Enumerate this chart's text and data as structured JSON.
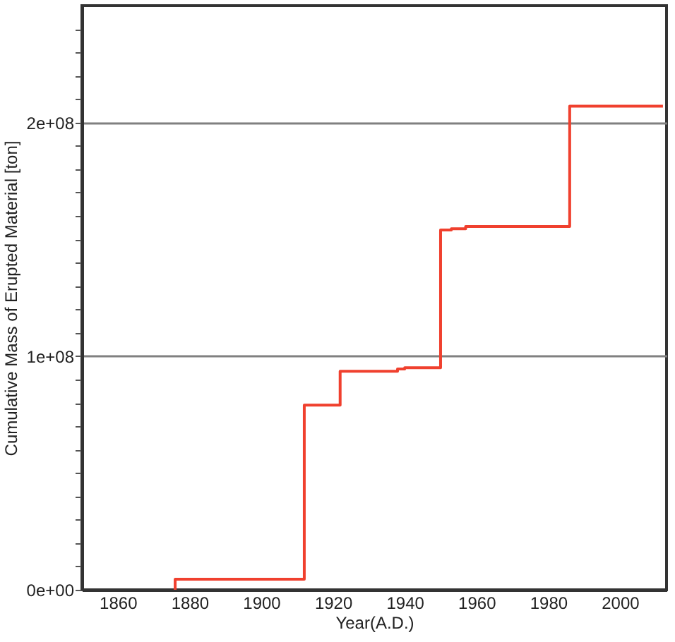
{
  "chart_data": {
    "type": "step",
    "xlabel": "Year(A.D.)",
    "ylabel": "Cumulative Mass of Erupted Material [ton]",
    "x": [
      1876,
      1876,
      1912,
      1922,
      1938,
      1940,
      1950,
      1953,
      1957,
      1986,
      2012
    ],
    "series": [
      {
        "color": "#f0402e",
        "values": [
          0,
          4500000,
          79000000,
          93500000,
          94500000,
          95000000,
          154000000,
          154500000,
          155500000,
          207000000,
          207000000
        ]
      }
    ],
    "xlim": [
      1850,
      2013
    ],
    "xticks": [
      1860,
      1880,
      1900,
      1920,
      1940,
      1960,
      1980,
      2000
    ],
    "ylim": [
      0,
      250000000
    ],
    "yticks": [
      {
        "value": 0,
        "label": "0e+00"
      },
      {
        "value": 10000000,
        "label": null
      },
      {
        "value": 20000000,
        "label": null
      },
      {
        "value": 30000000,
        "label": null
      },
      {
        "value": 40000000,
        "label": null
      },
      {
        "value": 50000000,
        "label": null
      },
      {
        "value": 60000000,
        "label": null
      },
      {
        "value": 70000000,
        "label": null
      },
      {
        "value": 80000000,
        "label": null
      },
      {
        "value": 90000000,
        "label": null
      },
      {
        "value": 100000000,
        "label": "1e+08"
      },
      {
        "value": 110000000,
        "label": null
      },
      {
        "value": 120000000,
        "label": null
      },
      {
        "value": 130000000,
        "label": null
      },
      {
        "value": 140000000,
        "label": null
      },
      {
        "value": 150000000,
        "label": null
      },
      {
        "value": 160000000,
        "label": null
      },
      {
        "value": 170000000,
        "label": null
      },
      {
        "value": 180000000,
        "label": null
      },
      {
        "value": 190000000,
        "label": null
      },
      {
        "value": 200000000,
        "label": "2e+08"
      },
      {
        "value": 210000000,
        "label": null
      },
      {
        "value": 220000000,
        "label": null
      },
      {
        "value": 230000000,
        "label": null
      },
      {
        "value": 240000000,
        "label": null
      }
    ],
    "grid": "y"
  }
}
